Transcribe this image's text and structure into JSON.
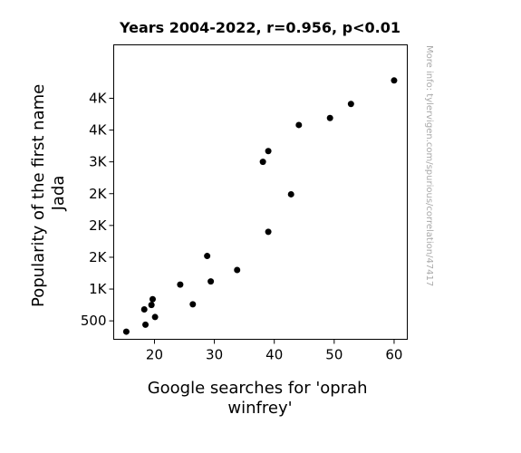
{
  "chart_data": {
    "type": "scatter",
    "title": "Years 2004-2022, r=0.956, p<0.01",
    "xlabel": [
      "Google searches for 'oprah",
      "winfrey'"
    ],
    "ylabel": [
      "Popularity of the first name",
      "Jada"
    ],
    "xlim": [
      13.2,
      62.2
    ],
    "ylim": [
      210,
      4840
    ],
    "x_ticks": [
      {
        "value": 20,
        "label": "20"
      },
      {
        "value": 30,
        "label": "30"
      },
      {
        "value": 40,
        "label": "40"
      },
      {
        "value": 50,
        "label": "50"
      },
      {
        "value": 60,
        "label": "60"
      }
    ],
    "y_ticks": [
      {
        "value": 500,
        "label": "500"
      },
      {
        "value": 1000,
        "label": "1K"
      },
      {
        "value": 1500,
        "label": "2K"
      },
      {
        "value": 2000,
        "label": "2K"
      },
      {
        "value": 2500,
        "label": "2K"
      },
      {
        "value": 3000,
        "label": "3K"
      },
      {
        "value": 3500,
        "label": "4K"
      },
      {
        "value": 4000,
        "label": "4K"
      }
    ],
    "points": [
      {
        "x": 15.3,
        "y": 330
      },
      {
        "x": 18.3,
        "y": 680
      },
      {
        "x": 18.5,
        "y": 440
      },
      {
        "x": 19.5,
        "y": 750
      },
      {
        "x": 19.7,
        "y": 840
      },
      {
        "x": 20.1,
        "y": 560
      },
      {
        "x": 24.3,
        "y": 1070
      },
      {
        "x": 26.4,
        "y": 760
      },
      {
        "x": 28.8,
        "y": 1520
      },
      {
        "x": 29.4,
        "y": 1120
      },
      {
        "x": 33.8,
        "y": 1300
      },
      {
        "x": 38.1,
        "y": 3000
      },
      {
        "x": 39.0,
        "y": 3170
      },
      {
        "x": 39.0,
        "y": 1900
      },
      {
        "x": 42.8,
        "y": 2490
      },
      {
        "x": 44.1,
        "y": 3580
      },
      {
        "x": 49.3,
        "y": 3690
      },
      {
        "x": 52.8,
        "y": 3910
      },
      {
        "x": 60.0,
        "y": 4280
      }
    ],
    "grid": false,
    "point_color": "#000000",
    "watermark": "More info: tylervigen.com/spurious/correlation/47417"
  }
}
